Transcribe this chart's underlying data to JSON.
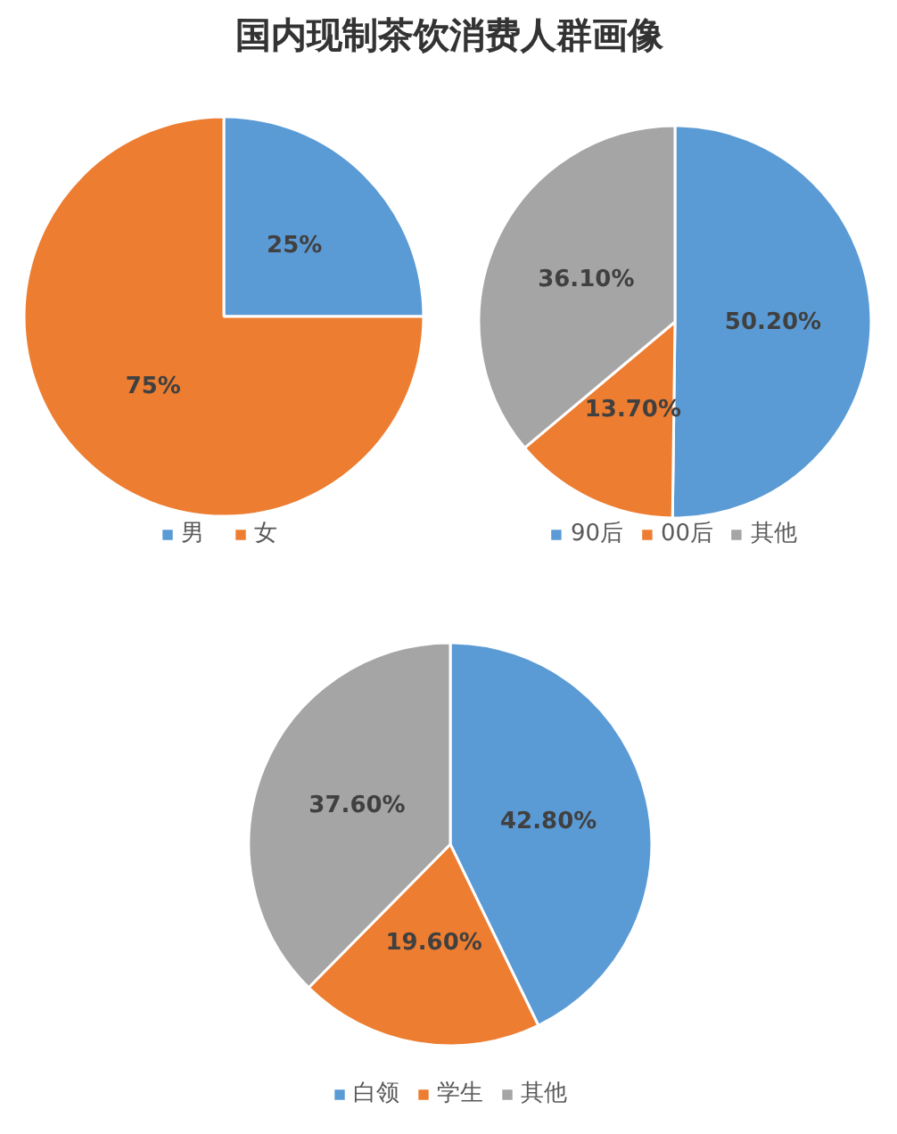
{
  "chart_data": [
    {
      "type": "pie",
      "title": "国内现制茶饮消费人群画像",
      "categories": [
        "男",
        "女"
      ],
      "values": [
        25,
        75
      ],
      "colors": [
        "#5b9bd5",
        "#ed7d31"
      ],
      "value_labels": [
        "25%",
        "75%"
      ],
      "legend": "bottom"
    },
    {
      "type": "pie",
      "categories": [
        "90后",
        "00后",
        "其他"
      ],
      "values": [
        50.2,
        13.7,
        36.1
      ],
      "colors": [
        "#5b9bd5",
        "#ed7d31",
        "#a5a5a5"
      ],
      "value_labels": [
        "50.20%",
        "13.70%",
        "36.10%"
      ],
      "legend": "bottom"
    },
    {
      "type": "pie",
      "categories": [
        "白领",
        "学生",
        "其他"
      ],
      "values": [
        42.8,
        19.6,
        37.6
      ],
      "colors": [
        "#5b9bd5",
        "#ed7d31",
        "#a5a5a5"
      ],
      "value_labels": [
        "42.80%",
        "19.60%",
        "37.60%"
      ],
      "legend": "bottom"
    }
  ]
}
